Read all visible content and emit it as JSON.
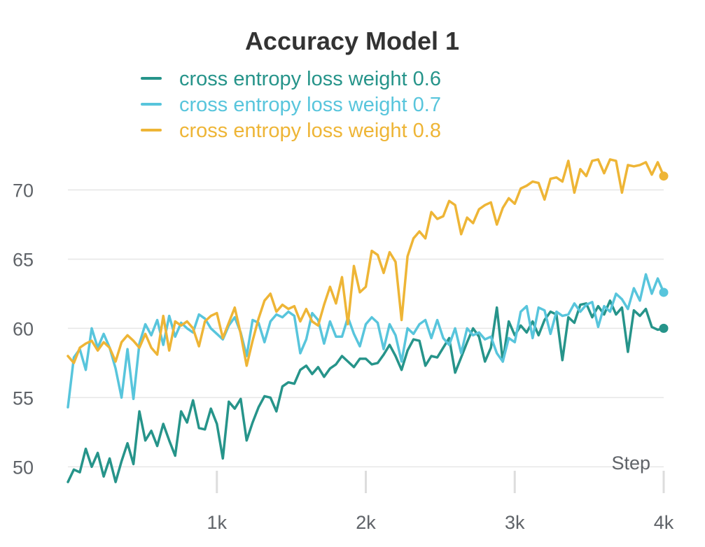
{
  "chart_data": {
    "type": "line",
    "title": "Accuracy Model 1",
    "xlabel": "Step",
    "ylabel": "",
    "xlim": [
      0,
      4000
    ],
    "ylim": [
      48.5,
      72.5
    ],
    "x_ticks": [
      {
        "value": 1000,
        "label": "1k"
      },
      {
        "value": 2000,
        "label": "2k"
      },
      {
        "value": 3000,
        "label": "3k"
      },
      {
        "value": 4000,
        "label": "4k"
      }
    ],
    "y_ticks": [
      {
        "value": 50,
        "label": "50"
      },
      {
        "value": 55,
        "label": "55"
      },
      {
        "value": 60,
        "label": "60"
      },
      {
        "value": 65,
        "label": "65"
      },
      {
        "value": 70,
        "label": "70"
      }
    ],
    "grid": "horizontal",
    "legend_position": "top",
    "x": [
      0,
      40,
      80,
      120,
      160,
      200,
      240,
      280,
      320,
      360,
      400,
      440,
      480,
      520,
      560,
      600,
      640,
      680,
      720,
      760,
      800,
      840,
      880,
      920,
      960,
      1000,
      1040,
      1080,
      1120,
      1160,
      1200,
      1240,
      1280,
      1320,
      1360,
      1400,
      1440,
      1480,
      1520,
      1560,
      1600,
      1640,
      1680,
      1720,
      1760,
      1800,
      1840,
      1880,
      1920,
      1960,
      2000,
      2040,
      2080,
      2120,
      2160,
      2200,
      2240,
      2280,
      2320,
      2360,
      2400,
      2440,
      2480,
      2520,
      2560,
      2600,
      2640,
      2680,
      2720,
      2760,
      2800,
      2840,
      2880,
      2920,
      2960,
      3000,
      3040,
      3080,
      3120,
      3160,
      3200,
      3240,
      3280,
      3320,
      3360,
      3400,
      3440,
      3480,
      3520,
      3560,
      3600,
      3640,
      3680,
      3720,
      3760,
      3800,
      3840,
      3880,
      3920,
      3960,
      4000
    ],
    "series": [
      {
        "name": "cross entropy loss weight 0.6",
        "color": "#26948a",
        "values": [
          48.9,
          49.8,
          49.6,
          51.3,
          50.0,
          51.0,
          49.3,
          50.6,
          48.9,
          50.4,
          51.7,
          50.2,
          54.0,
          51.9,
          52.6,
          51.5,
          53.1,
          51.9,
          50.8,
          54.0,
          53.2,
          54.8,
          52.8,
          52.7,
          54.2,
          53.1,
          50.6,
          54.7,
          54.2,
          54.9,
          51.9,
          53.2,
          54.3,
          55.1,
          55.0,
          54.0,
          55.8,
          56.1,
          56.0,
          57.0,
          57.3,
          56.7,
          57.2,
          56.5,
          57.1,
          57.4,
          58.0,
          57.6,
          57.2,
          57.8,
          57.8,
          57.4,
          57.5,
          58.1,
          58.8,
          58.0,
          57.0,
          58.4,
          59.2,
          59.1,
          57.3,
          58.0,
          57.9,
          58.6,
          59.3,
          56.8,
          57.9,
          59.0,
          60.0,
          59.4,
          57.6,
          58.6,
          61.5,
          57.6,
          60.5,
          59.5,
          60.2,
          59.7,
          60.5,
          59.5,
          60.6,
          61.2,
          61.0,
          57.7,
          60.8,
          60.4,
          61.7,
          61.8,
          60.8,
          61.6,
          61.0,
          62.0,
          61.0,
          61.5,
          58.3,
          61.3,
          60.9,
          61.4,
          60.1,
          59.9,
          60.0
        ]
      },
      {
        "name": "cross entropy loss weight 0.7",
        "color": "#58c5dc",
        "values": [
          54.3,
          57.9,
          58.5,
          57.0,
          60.0,
          58.6,
          59.6,
          58.6,
          57.1,
          55.0,
          58.5,
          54.9,
          58.9,
          60.3,
          59.5,
          60.6,
          58.8,
          60.9,
          59.4,
          60.4,
          60.0,
          59.7,
          61.0,
          60.7,
          60.0,
          59.6,
          59.2,
          60.2,
          60.8,
          59.7,
          58.0,
          60.6,
          60.4,
          59.0,
          60.5,
          61.0,
          60.8,
          61.2,
          60.9,
          58.2,
          59.2,
          61.1,
          60.6,
          58.9,
          60.5,
          59.4,
          59.4,
          60.8,
          59.6,
          58.7,
          60.3,
          60.8,
          60.4,
          58.5,
          60.3,
          59.5,
          57.6,
          60.0,
          59.6,
          60.3,
          60.6,
          59.3,
          60.6,
          59.3,
          58.8,
          60.0,
          58.2,
          60.0,
          59.5,
          59.7,
          59.2,
          59.4,
          58.2,
          57.6,
          59.3,
          59.0,
          61.2,
          61.6,
          59.3,
          61.5,
          61.3,
          59.6,
          61.2,
          60.9,
          61.0,
          61.8,
          61.2,
          61.7,
          61.9,
          60.1,
          61.6,
          61.2,
          62.5,
          62.1,
          61.4,
          62.9,
          62.0,
          63.9,
          62.5,
          63.6,
          62.6
        ]
      },
      {
        "name": "cross entropy loss weight 0.8",
        "color": "#eeb536",
        "values": [
          58.0,
          57.5,
          58.6,
          58.9,
          59.1,
          58.4,
          59.0,
          58.6,
          57.6,
          59.0,
          59.5,
          59.1,
          58.6,
          59.6,
          58.6,
          58.1,
          60.9,
          58.4,
          60.5,
          60.2,
          60.5,
          60.0,
          58.7,
          60.5,
          60.9,
          61.1,
          59.3,
          60.4,
          61.5,
          59.6,
          57.3,
          59.1,
          60.7,
          62.0,
          62.5,
          61.2,
          61.7,
          61.4,
          61.6,
          60.5,
          61.4,
          60.5,
          60.2,
          61.7,
          63.0,
          61.8,
          63.7,
          60.3,
          64.5,
          62.6,
          63.0,
          65.6,
          65.3,
          64.0,
          65.5,
          64.8,
          60.6,
          65.2,
          66.5,
          67.0,
          66.5,
          68.4,
          67.9,
          68.1,
          69.2,
          68.9,
          66.8,
          68.0,
          67.6,
          68.6,
          68.9,
          69.1,
          67.5,
          68.7,
          69.4,
          69.0,
          70.1,
          70.3,
          70.6,
          70.5,
          69.3,
          70.8,
          70.9,
          70.6,
          72.1,
          69.8,
          71.5,
          71.0,
          72.1,
          72.2,
          71.2,
          72.2,
          72.1,
          69.8,
          71.8,
          71.7,
          71.8,
          72.0,
          71.1,
          72.0,
          71.0
        ]
      }
    ]
  }
}
